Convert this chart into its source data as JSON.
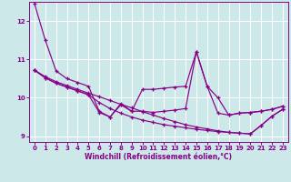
{
  "xlabel": "Windchill (Refroidissement éolien,°C)",
  "bg_color": "#cce8e8",
  "grid_color": "#ffffff",
  "line_color": "#880088",
  "xlim": [
    -0.5,
    23.5
  ],
  "ylim": [
    8.85,
    12.5
  ],
  "yticks": [
    9,
    10,
    11,
    12
  ],
  "xticks": [
    0,
    1,
    2,
    3,
    4,
    5,
    6,
    7,
    8,
    9,
    10,
    11,
    12,
    13,
    14,
    15,
    16,
    17,
    18,
    19,
    20,
    21,
    22,
    23
  ],
  "x": [
    0,
    1,
    2,
    3,
    4,
    5,
    6,
    7,
    8,
    9,
    10,
    11,
    12,
    13,
    14,
    15,
    16,
    17,
    18,
    19,
    20,
    21,
    22,
    23
  ],
  "line1": [
    12.45,
    11.5,
    10.7,
    10.5,
    10.4,
    10.3,
    9.65,
    9.5,
    9.82,
    9.65,
    10.22,
    10.22,
    10.25,
    10.28,
    10.3,
    11.2,
    10.3,
    10.0,
    9.55,
    9.6,
    9.62,
    9.65,
    9.7,
    9.78
  ],
  "line2": [
    10.72,
    10.55,
    10.42,
    10.32,
    10.22,
    10.12,
    10.03,
    9.93,
    9.83,
    9.74,
    9.64,
    9.55,
    9.46,
    9.38,
    9.3,
    9.24,
    9.19,
    9.14,
    9.1,
    9.08,
    9.06,
    9.28,
    9.52,
    9.7
  ],
  "line3": [
    10.72,
    10.52,
    10.38,
    10.28,
    10.18,
    10.08,
    9.62,
    9.5,
    9.85,
    9.65,
    9.65,
    9.62,
    9.65,
    9.68,
    9.72,
    11.2,
    10.3,
    9.6,
    9.55,
    9.6,
    9.62,
    9.65,
    9.7,
    9.78
  ],
  "line4": [
    10.72,
    10.52,
    10.38,
    10.28,
    10.18,
    10.08,
    9.88,
    9.72,
    9.6,
    9.5,
    9.42,
    9.36,
    9.3,
    9.26,
    9.22,
    9.18,
    9.15,
    9.12,
    9.1,
    9.08,
    9.06,
    9.28,
    9.52,
    9.7
  ]
}
